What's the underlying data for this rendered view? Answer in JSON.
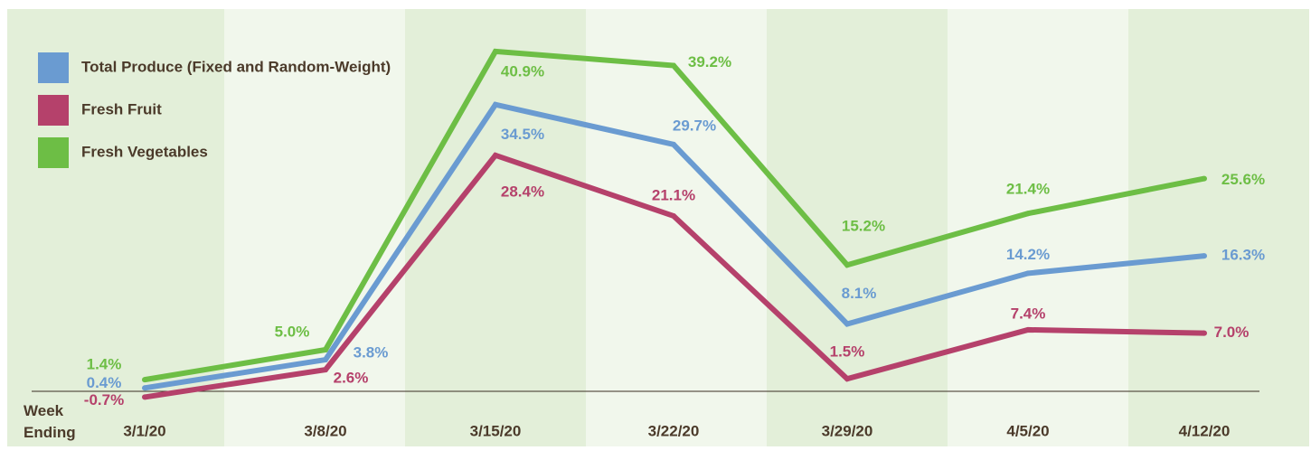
{
  "chart_data": {
    "type": "line",
    "x_label": "Week Ending",
    "categories": [
      "3/1/20",
      "3/8/20",
      "3/15/20",
      "3/22/20",
      "3/29/20",
      "4/5/20",
      "4/12/20"
    ],
    "ylim": [
      -6.2,
      46
    ],
    "series": [
      {
        "name": "Total Produce (Fixed and Random-Weight)",
        "color": "#6a9bd1",
        "values": [
          0.4,
          3.8,
          34.5,
          29.7,
          8.1,
          14.2,
          16.3
        ],
        "value_labels": [
          "0.4%",
          "3.8%",
          "34.5%",
          "29.7%",
          "8.1%",
          "14.2%",
          "16.3%"
        ]
      },
      {
        "name": "Fresh Fruit",
        "color": "#b5416b",
        "values": [
          -0.7,
          2.6,
          28.4,
          21.1,
          1.5,
          7.4,
          7.0
        ],
        "value_labels": [
          "-0.7%",
          "2.6%",
          "28.4%",
          "21.1%",
          "1.5%",
          "7.4%",
          "7.0%"
        ]
      },
      {
        "name": "Fresh Vegetables",
        "color": "#6dbe45",
        "values": [
          1.4,
          5.0,
          40.9,
          39.2,
          15.2,
          21.4,
          25.6
        ],
        "value_labels": [
          "1.4%",
          "5.0%",
          "40.9%",
          "39.2%",
          "15.2%",
          "21.4%",
          "25.6%"
        ]
      }
    ]
  }
}
